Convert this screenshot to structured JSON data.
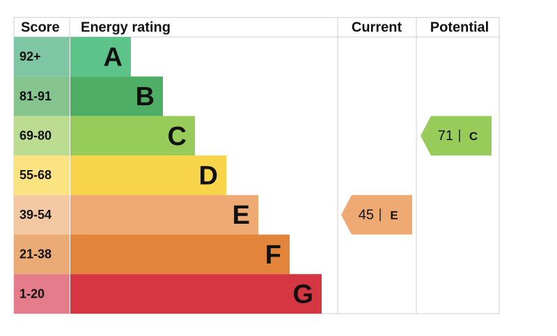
{
  "header": {
    "score": "Score",
    "rating": "Energy rating",
    "current": "Current",
    "potential": "Potential"
  },
  "bands": [
    {
      "score": "92+",
      "letter": "A",
      "color": "#5cc489",
      "score_color": "#7fc7a4"
    },
    {
      "score": "81-91",
      "letter": "B",
      "color": "#4fae65",
      "score_color": "#86c48f"
    },
    {
      "score": "69-80",
      "letter": "C",
      "color": "#97cc5a",
      "score_color": "#bcdc91"
    },
    {
      "score": "55-68",
      "letter": "D",
      "color": "#f7d44a",
      "score_color": "#fbe381"
    },
    {
      "score": "39-54",
      "letter": "E",
      "color": "#eeaa72",
      "score_color": "#f3c8a3"
    },
    {
      "score": "21-38",
      "letter": "F",
      "color": "#e2843a",
      "score_color": "#ebab75"
    },
    {
      "score": "1-20",
      "letter": "G",
      "color": "#d63641",
      "score_color": "#e57c8c"
    }
  ],
  "current": {
    "value": 45,
    "letter": "E"
  },
  "potential": {
    "value": 71,
    "letter": "C"
  }
}
